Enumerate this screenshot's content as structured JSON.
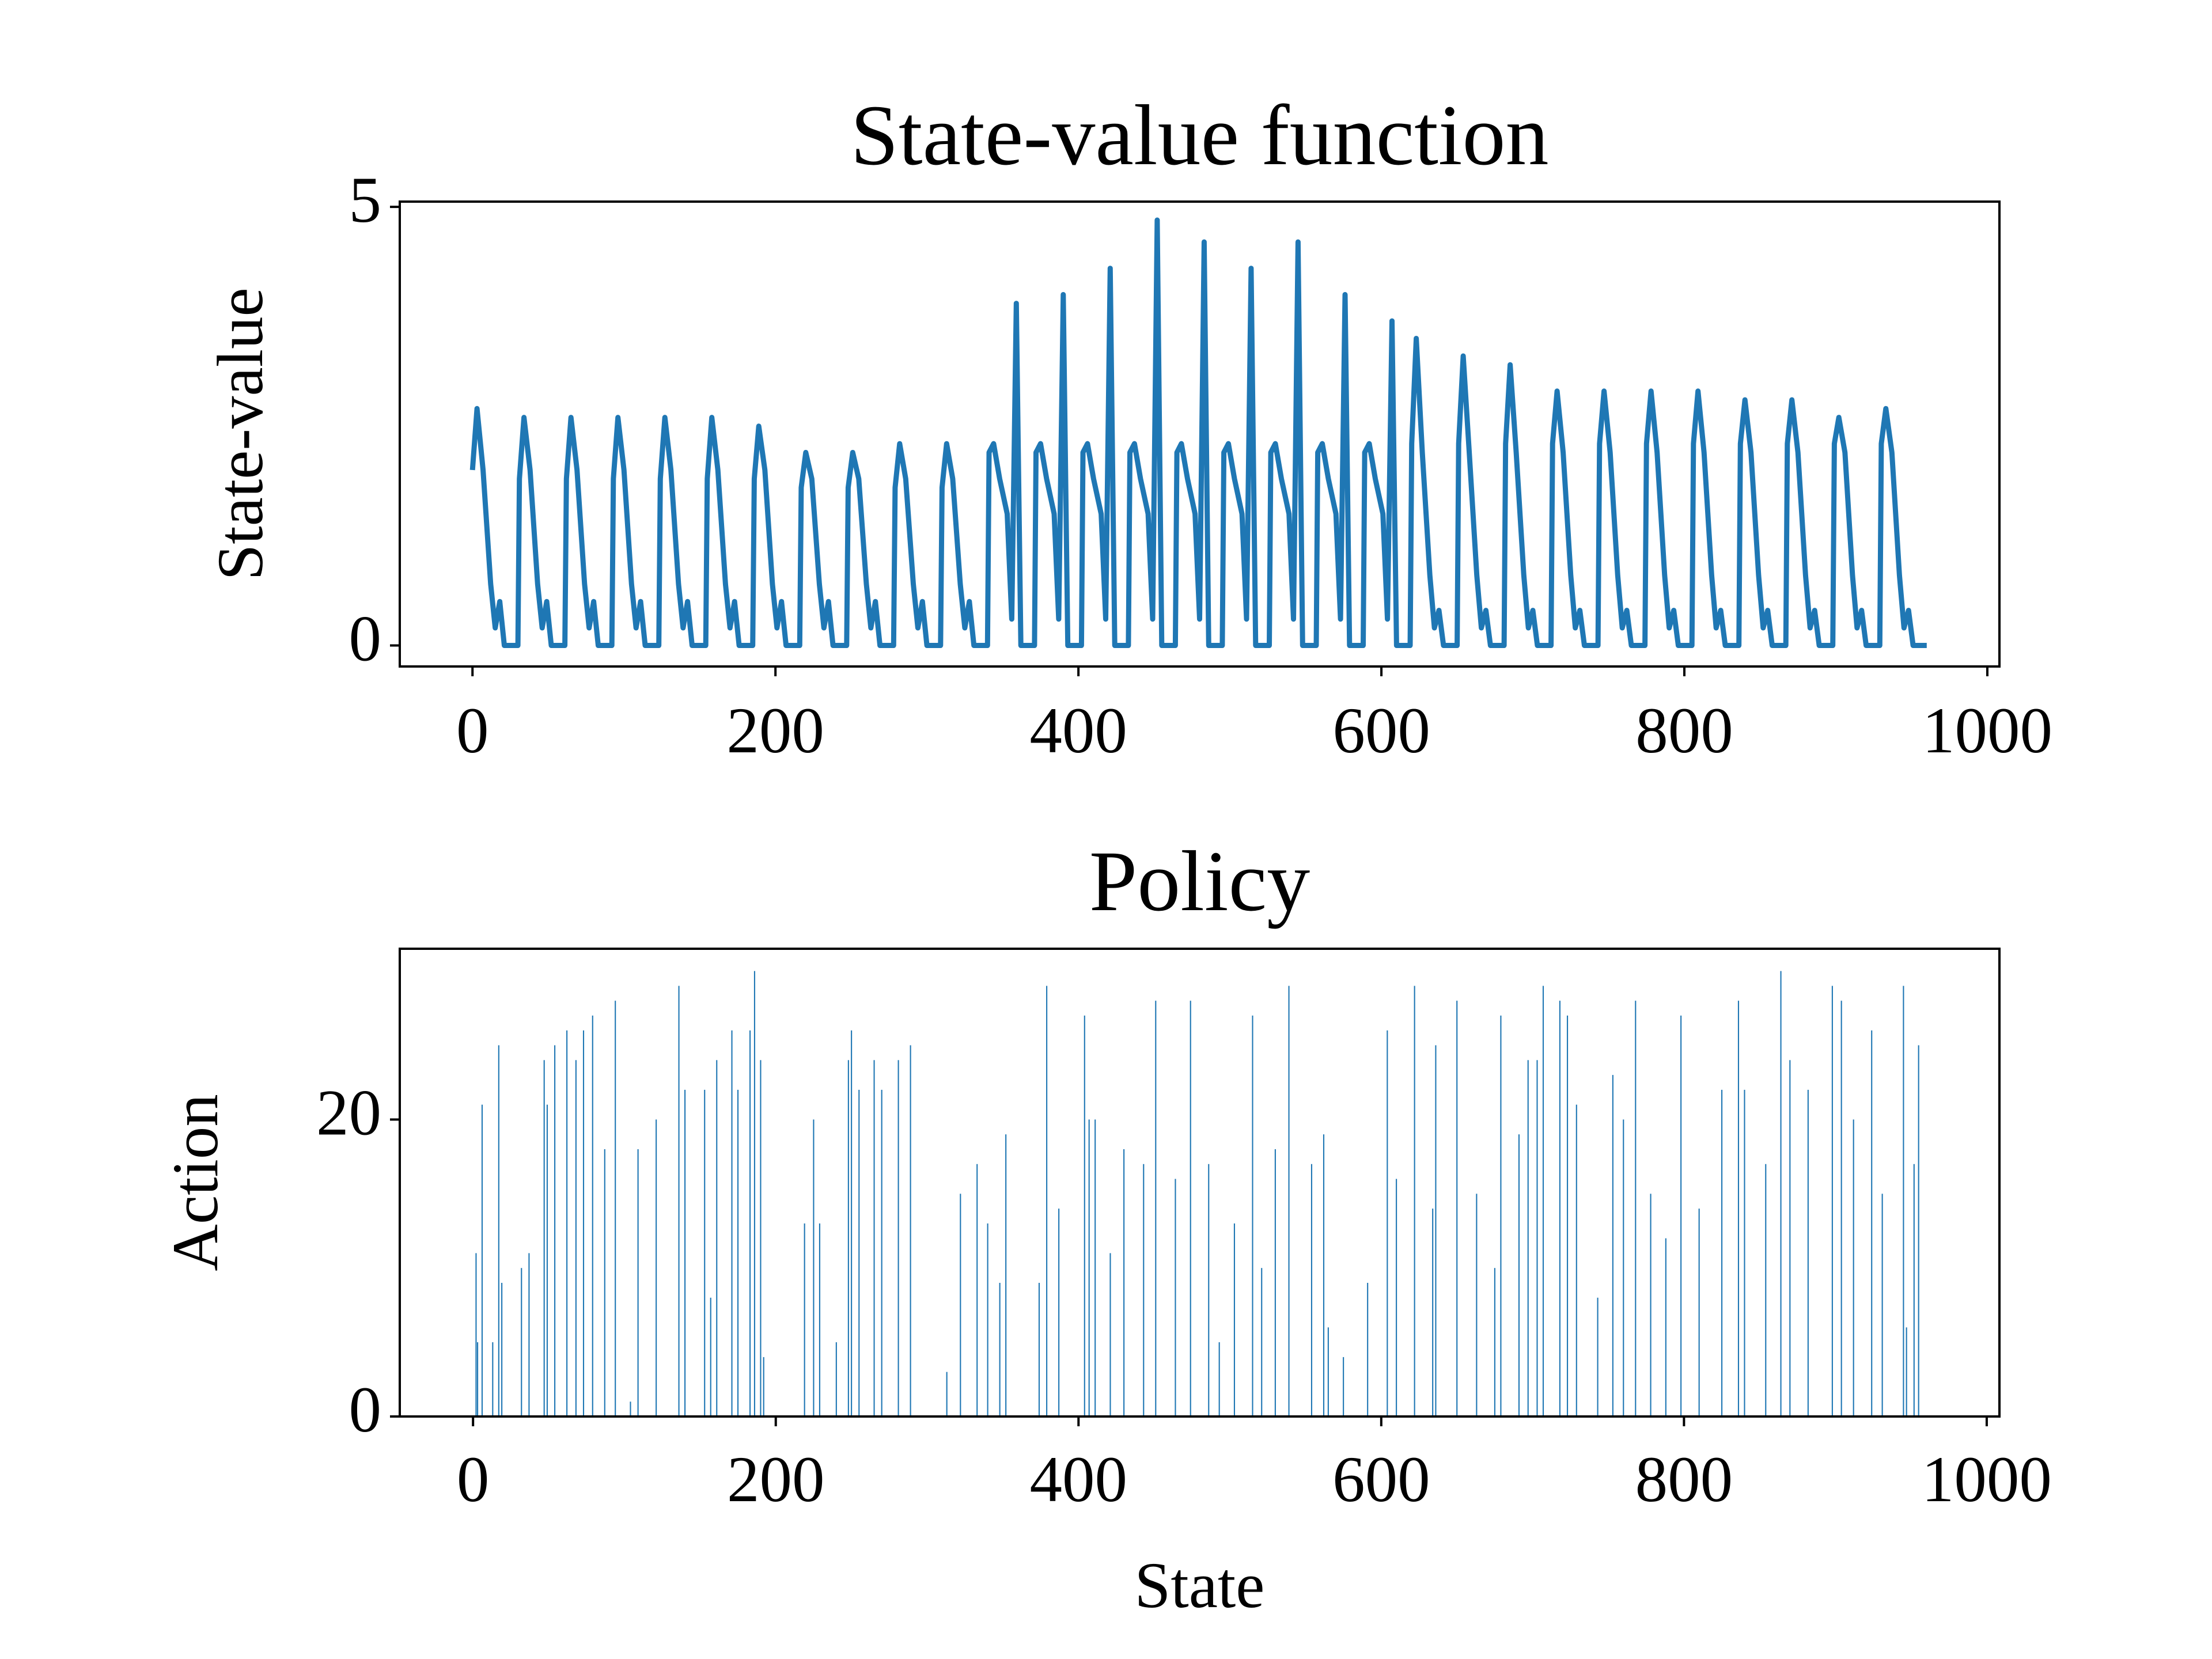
{
  "chart_data": [
    {
      "type": "line",
      "title": "State-value function",
      "ylabel": "State-value",
      "color": "#1f77b4",
      "x": [
        0,
        3,
        7,
        12,
        15,
        18,
        21,
        30,
        31,
        34,
        38,
        43,
        46,
        49,
        52,
        61,
        62,
        65,
        69,
        74,
        77,
        80,
        83,
        92,
        93,
        96,
        100,
        105,
        108,
        111,
        114,
        123,
        124,
        127,
        131,
        136,
        139,
        142,
        145,
        154,
        155,
        158,
        162,
        167,
        170,
        173,
        176,
        185,
        186,
        189,
        193,
        198,
        201,
        204,
        207,
        216,
        217,
        220,
        224,
        229,
        232,
        235,
        238,
        247,
        248,
        251,
        255,
        260,
        263,
        266,
        269,
        278,
        279,
        282,
        286,
        291,
        294,
        297,
        300,
        309,
        310,
        313,
        317,
        322,
        325,
        328,
        331,
        340,
        341,
        344,
        348,
        353,
        356,
        359,
        362,
        371,
        372,
        375,
        379,
        384,
        387,
        390,
        393,
        402,
        403,
        406,
        410,
        415,
        418,
        421,
        424,
        433,
        434,
        437,
        441,
        446,
        449,
        452,
        455,
        464,
        465,
        468,
        472,
        477,
        480,
        483,
        486,
        495,
        496,
        499,
        503,
        508,
        511,
        514,
        517,
        526,
        527,
        530,
        534,
        539,
        542,
        545,
        548,
        557,
        558,
        561,
        565,
        570,
        573,
        576,
        579,
        588,
        589,
        592,
        596,
        601,
        604,
        607,
        610,
        619,
        620,
        623,
        627,
        632,
        635,
        638,
        641,
        650,
        651,
        654,
        658,
        663,
        666,
        669,
        672,
        681,
        682,
        685,
        689,
        694,
        697,
        700,
        703,
        712,
        713,
        716,
        720,
        725,
        728,
        731,
        734,
        743,
        744,
        747,
        751,
        756,
        759,
        762,
        765,
        774,
        775,
        778,
        782,
        787,
        790,
        793,
        796,
        805,
        806,
        809,
        813,
        818,
        821,
        824,
        827,
        836,
        837,
        840,
        844,
        849,
        852,
        855,
        858,
        867,
        868,
        871,
        875,
        880,
        883,
        886,
        889,
        898,
        899,
        902,
        906,
        911,
        914,
        917,
        920,
        929,
        930,
        933,
        937,
        942,
        945,
        948,
        951,
        960
      ],
      "values": [
        2.0,
        2.7,
        2.0,
        0.7,
        0.2,
        0.5,
        0,
        0,
        1.9,
        2.6,
        2.0,
        0.7,
        0.2,
        0.5,
        0,
        0,
        1.9,
        2.6,
        2.0,
        0.7,
        0.2,
        0.5,
        0,
        0,
        1.9,
        2.6,
        2.0,
        0.7,
        0.2,
        0.5,
        0,
        0,
        1.9,
        2.6,
        2.0,
        0.7,
        0.2,
        0.5,
        0,
        0,
        1.9,
        2.6,
        2.0,
        0.7,
        0.2,
        0.5,
        0,
        0,
        1.9,
        2.5,
        2.0,
        0.7,
        0.2,
        0.5,
        0,
        0,
        1.8,
        2.2,
        1.9,
        0.7,
        0.2,
        0.5,
        0,
        0,
        1.8,
        2.2,
        1.9,
        0.7,
        0.2,
        0.5,
        0,
        0,
        1.8,
        2.3,
        1.9,
        0.7,
        0.2,
        0.5,
        0,
        0,
        1.8,
        2.3,
        1.9,
        0.7,
        0.2,
        0.5,
        0,
        0,
        2.2,
        2.3,
        1.9,
        1.5,
        0.3,
        3.9,
        0,
        0,
        2.2,
        2.3,
        1.9,
        1.5,
        0.3,
        4.0,
        0,
        0,
        2.2,
        2.3,
        1.9,
        1.5,
        0.3,
        4.3,
        0,
        0,
        2.2,
        2.3,
        1.9,
        1.5,
        0.3,
        4.85,
        0,
        0,
        2.2,
        2.3,
        1.9,
        1.5,
        0.3,
        4.6,
        0,
        0,
        2.2,
        2.3,
        1.9,
        1.5,
        0.3,
        4.3,
        0,
        0,
        2.2,
        2.3,
        1.9,
        1.5,
        0.3,
        4.6,
        0,
        0,
        2.2,
        2.3,
        1.9,
        1.5,
        0.3,
        4.0,
        0,
        0,
        2.2,
        2.3,
        1.9,
        1.5,
        0.3,
        3.7,
        0,
        0,
        2.3,
        3.5,
        2.2,
        0.8,
        0.2,
        0.4,
        0,
        0,
        2.3,
        3.3,
        2.2,
        0.8,
        0.2,
        0.4,
        0,
        0,
        2.3,
        3.2,
        2.2,
        0.8,
        0.2,
        0.4,
        0,
        0,
        2.3,
        2.9,
        2.2,
        0.8,
        0.2,
        0.4,
        0,
        0,
        2.3,
        2.9,
        2.2,
        0.8,
        0.2,
        0.4,
        0,
        0,
        2.3,
        2.9,
        2.2,
        0.8,
        0.2,
        0.4,
        0,
        0,
        2.3,
        2.9,
        2.2,
        0.8,
        0.2,
        0.4,
        0,
        0,
        2.3,
        2.8,
        2.2,
        0.8,
        0.2,
        0.4,
        0,
        0,
        2.3,
        2.8,
        2.2,
        0.8,
        0.2,
        0.4,
        0,
        0,
        2.3,
        2.6,
        2.2,
        0.8,
        0.2,
        0.4,
        0,
        0,
        2.3,
        2.7,
        2.2,
        0.8,
        0.2,
        0.4,
        0,
        0
      ],
      "xlim": [
        -48,
        1008
      ],
      "ylim": [
        -0.24,
        5.06
      ],
      "xticks": [
        0,
        200,
        400,
        600,
        800,
        1000
      ],
      "yticks": [
        0,
        5
      ]
    },
    {
      "type": "bar",
      "title": "Policy",
      "xlabel": "State",
      "ylabel": "Action",
      "color": "#1f77b4",
      "x": [
        2,
        3,
        6,
        13,
        17,
        19,
        32,
        37,
        47,
        49,
        54,
        62,
        68,
        73,
        79,
        87,
        94,
        104,
        109,
        121,
        136,
        140,
        153,
        157,
        161,
        171,
        175,
        183,
        186,
        190,
        192,
        219,
        225,
        229,
        240,
        248,
        250,
        255,
        265,
        270,
        281,
        289,
        313,
        322,
        333,
        340,
        348,
        352,
        374,
        379,
        387,
        404,
        407,
        411,
        421,
        430,
        443,
        451,
        464,
        474,
        486,
        493,
        503,
        515,
        521,
        530,
        539,
        554,
        562,
        565,
        575,
        591,
        604,
        610,
        622,
        634,
        636,
        650,
        663,
        675,
        679,
        691,
        697,
        703,
        707,
        718,
        723,
        729,
        743,
        753,
        760,
        768,
        778,
        788,
        798,
        810,
        825,
        836,
        840,
        854,
        864,
        870,
        882,
        898,
        904,
        912,
        924,
        931,
        945,
        947,
        952,
        955
      ],
      "values": [
        11,
        5,
        21,
        5,
        25,
        9,
        10,
        11,
        24,
        21,
        25,
        26,
        24,
        26,
        27,
        18,
        28,
        1,
        18,
        20,
        29,
        22,
        22,
        8,
        24,
        26,
        22,
        26,
        30,
        24,
        4,
        13,
        20,
        13,
        5,
        24,
        26,
        22,
        24,
        22,
        24,
        25,
        3,
        15,
        17,
        13,
        9,
        19,
        9,
        29,
        14,
        27,
        20,
        20,
        11,
        18,
        17,
        28,
        16,
        28,
        17,
        5,
        13,
        27,
        10,
        18,
        29,
        17,
        19,
        6,
        4,
        9,
        26,
        16,
        29,
        14,
        25,
        28,
        15,
        10,
        27,
        19,
        24,
        24,
        29,
        28,
        27,
        21,
        8,
        23,
        20,
        28,
        15,
        12,
        27,
        14,
        22,
        28,
        22,
        17,
        30,
        24,
        22,
        29,
        28,
        20,
        26,
        15,
        29,
        6,
        17,
        25
      ],
      "xlim": [
        -48.4,
        1008.4
      ],
      "ylim": [
        0,
        31.5
      ],
      "xticks": [
        0,
        200,
        400,
        600,
        800,
        1000
      ],
      "yticks": [
        0,
        20
      ]
    }
  ]
}
